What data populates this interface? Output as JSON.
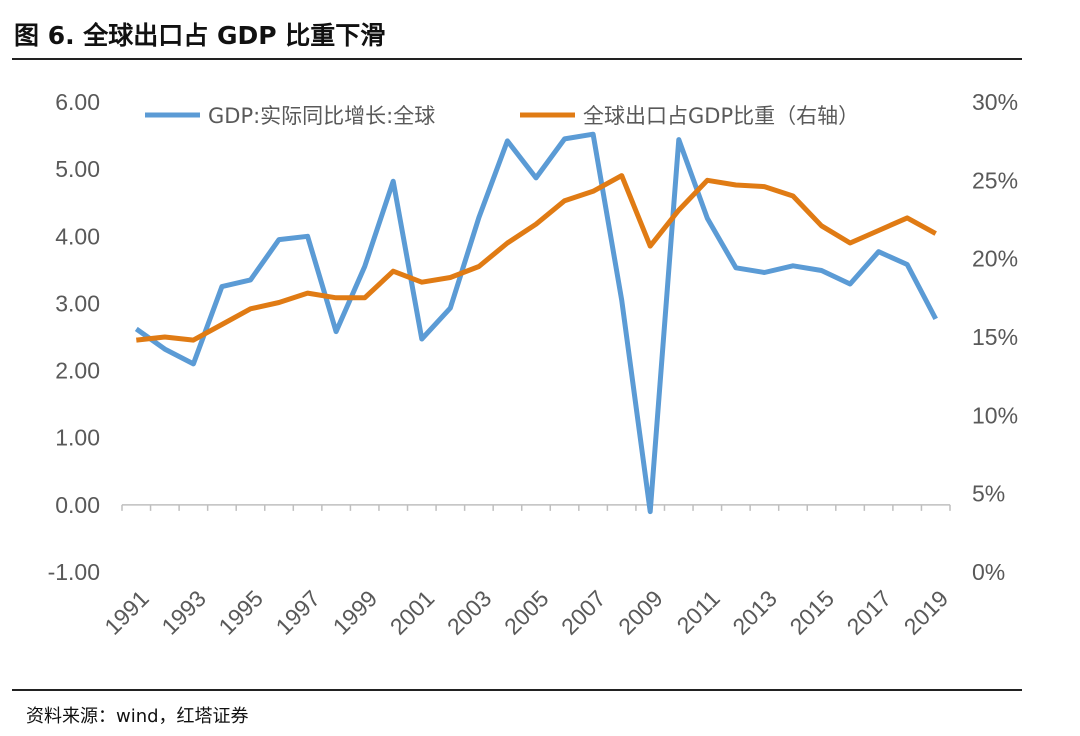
{
  "figure_title": "图 6. 全球出口占 GDP 比重下滑",
  "source_note": "资料来源：wind，红塔证券",
  "colors": {
    "gdp_growth": "#5B9BD5",
    "export_share": "#E07B14",
    "axis": "#BFBFBF",
    "tick_text": "#595959"
  },
  "chart_data": {
    "type": "line",
    "title": "",
    "x": [
      1991,
      1992,
      1993,
      1994,
      1995,
      1996,
      1997,
      1998,
      1999,
      2000,
      2001,
      2002,
      2003,
      2004,
      2005,
      2006,
      2007,
      2008,
      2009,
      2010,
      2011,
      2012,
      2013,
      2014,
      2015,
      2016,
      2017,
      2018,
      2019
    ],
    "x_tick_labels": [
      "1991",
      "1993",
      "1995",
      "1997",
      "1999",
      "2001",
      "2003",
      "2005",
      "2007",
      "2009",
      "2011",
      "2013",
      "2015",
      "2017",
      "2019"
    ],
    "y_left": {
      "range": [
        -1,
        6
      ],
      "tick_labels": [
        "-1.00",
        "0.00",
        "1.00",
        "2.00",
        "3.00",
        "4.00",
        "5.00",
        "6.00"
      ]
    },
    "y_right": {
      "range": [
        0,
        30
      ],
      "tick_labels": [
        "0%",
        "5%",
        "10%",
        "15%",
        "20%",
        "25%",
        "30%"
      ]
    },
    "grid": false,
    "legend_position": "top",
    "series": [
      {
        "name": "GDP:实际同比增长:全球",
        "axis": "left",
        "values": [
          2.62,
          2.32,
          2.1,
          3.25,
          3.35,
          3.95,
          4.0,
          2.58,
          3.55,
          4.82,
          2.47,
          2.93,
          4.28,
          5.42,
          4.87,
          5.45,
          5.52,
          3.05,
          -0.1,
          5.44,
          4.27,
          3.53,
          3.46,
          3.56,
          3.49,
          3.29,
          3.77,
          3.58,
          2.77
        ]
      },
      {
        "name": "全球出口占GDP比重（右轴）",
        "axis": "right",
        "values": [
          14.8,
          15.0,
          14.8,
          15.8,
          16.8,
          17.2,
          17.8,
          17.5,
          17.5,
          19.2,
          18.5,
          18.8,
          19.5,
          21.0,
          22.2,
          23.7,
          24.3,
          25.3,
          20.8,
          23.1,
          25.0,
          24.7,
          24.6,
          24.0,
          22.1,
          21.0,
          21.8,
          22.6,
          21.6
        ]
      }
    ]
  }
}
